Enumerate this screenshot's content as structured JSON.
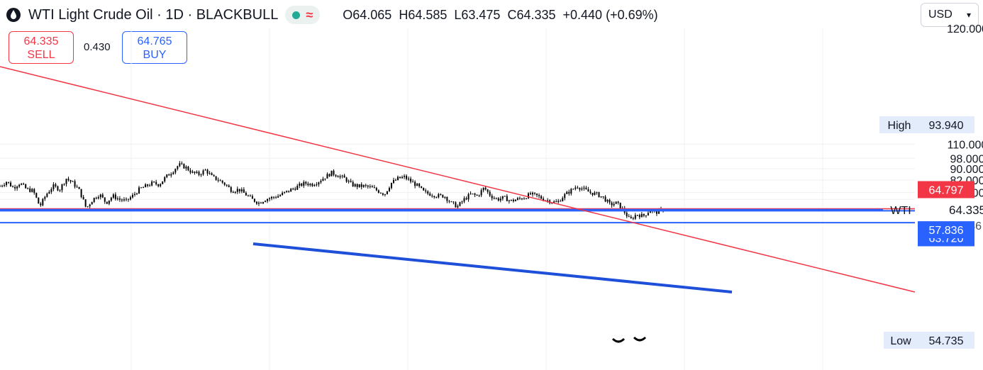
{
  "header": {
    "title": "WTI Light Crude Oil · 1D · BLACKBULL",
    "status_wave": "≈",
    "ohlc": [
      {
        "k": "O",
        "v": "64.065"
      },
      {
        "k": "H",
        "v": "64.585"
      },
      {
        "k": "L",
        "v": "63.475"
      },
      {
        "k": "C",
        "v": "64.335"
      }
    ],
    "change": "+0.440 (+0.69%)"
  },
  "trade": {
    "sell_price": "64.335",
    "sell_label": "SELL",
    "spread": "0.430",
    "buy_price": "64.765",
    "buy_label": "BUY"
  },
  "currency": {
    "selected": "USD"
  },
  "colors": {
    "sell": "#f23645",
    "buy": "#2962ff",
    "trendline_red": "#f23645",
    "trendline_blue": "#1e4fd8",
    "candles": "#000000",
    "grid": "#eef0f3"
  },
  "chart_data": {
    "type": "candlestick",
    "y_axis": {
      "scale": "log",
      "range": [
        52,
        123
      ],
      "ticks": [
        "110.000",
        "98.000",
        "90.000",
        "82.000",
        "74.000"
      ]
    },
    "grid": true,
    "price_series": [
      78,
      81,
      77,
      80,
      76,
      75,
      66,
      73,
      78,
      76,
      83,
      80,
      75,
      65,
      70,
      73,
      68,
      72,
      70,
      69,
      72,
      76,
      78,
      80,
      79,
      84,
      88,
      93,
      91,
      87,
      86,
      89,
      84,
      82,
      79,
      75,
      76,
      73,
      70,
      68,
      70,
      71,
      72,
      74,
      76,
      78,
      80,
      79,
      81,
      84,
      87,
      85,
      83,
      79,
      78,
      78,
      77,
      75,
      73,
      80,
      83,
      84,
      81,
      78,
      74,
      73,
      72,
      72,
      68,
      66,
      70,
      73,
      72,
      77,
      72,
      70,
      71,
      69,
      70,
      71,
      73,
      72,
      70,
      69,
      68,
      72,
      75,
      78,
      76,
      74,
      73,
      71,
      67,
      68,
      64,
      59,
      62,
      61,
      64,
      63,
      64.335
    ],
    "horizontal_levels": [
      {
        "price": "64.797",
        "color": "#f23645",
        "label_style": "filled"
      },
      {
        "price": "64.335",
        "name": "WTI",
        "sublabel": "00:36",
        "color": "#2962ff"
      },
      {
        "price": "63.720",
        "color": "#2962ff",
        "label_style": "filled"
      },
      {
        "price": "57.836",
        "color": "#2962ff",
        "label_style": "filled"
      }
    ],
    "high": {
      "label": "High",
      "value": "93.940"
    },
    "low": {
      "label": "Low",
      "value": "54.735"
    },
    "trendlines": [
      {
        "color": "#f23645",
        "style": "resistance"
      },
      {
        "color": "#1e4fd8",
        "style": "support"
      }
    ]
  }
}
